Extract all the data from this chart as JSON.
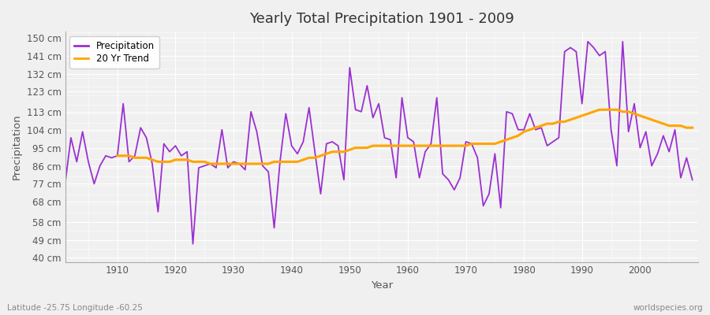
{
  "title": "Yearly Total Precipitation 1901 - 2009",
  "xlabel": "Year",
  "ylabel": "Precipitation",
  "subtitle": "Latitude -25.75 Longitude -60.25",
  "watermark": "worldspecies.org",
  "years": [
    1901,
    1902,
    1903,
    1904,
    1905,
    1906,
    1907,
    1908,
    1909,
    1910,
    1911,
    1912,
    1913,
    1914,
    1915,
    1916,
    1917,
    1918,
    1919,
    1920,
    1921,
    1922,
    1923,
    1924,
    1925,
    1926,
    1927,
    1928,
    1929,
    1930,
    1931,
    1932,
    1933,
    1934,
    1935,
    1936,
    1937,
    1938,
    1939,
    1940,
    1941,
    1942,
    1943,
    1944,
    1945,
    1946,
    1947,
    1948,
    1949,
    1950,
    1951,
    1952,
    1953,
    1954,
    1955,
    1956,
    1957,
    1958,
    1959,
    1960,
    1961,
    1962,
    1963,
    1964,
    1965,
    1966,
    1967,
    1968,
    1969,
    1970,
    1971,
    1972,
    1973,
    1974,
    1975,
    1976,
    1977,
    1978,
    1979,
    1980,
    1981,
    1982,
    1983,
    1984,
    1985,
    1986,
    1987,
    1988,
    1989,
    1990,
    1991,
    1992,
    1993,
    1994,
    1995,
    1996,
    1997,
    1998,
    1999,
    2000,
    2001,
    2002,
    2003,
    2004,
    2005,
    2006,
    2007,
    2008,
    2009
  ],
  "precip": [
    77,
    100,
    88,
    103,
    88,
    77,
    86,
    91,
    90,
    91,
    117,
    88,
    91,
    105,
    100,
    87,
    63,
    97,
    93,
    96,
    91,
    93,
    47,
    85,
    86,
    87,
    85,
    104,
    85,
    88,
    87,
    84,
    113,
    103,
    86,
    83,
    55,
    88,
    112,
    96,
    92,
    98,
    115,
    93,
    72,
    97,
    98,
    96,
    79,
    135,
    114,
    113,
    126,
    110,
    117,
    100,
    99,
    80,
    120,
    100,
    98,
    80,
    93,
    97,
    120,
    82,
    79,
    74,
    80,
    98,
    97,
    90,
    66,
    72,
    92,
    65,
    113,
    112,
    104,
    104,
    112,
    104,
    105,
    96,
    98,
    100,
    143,
    145,
    143,
    117,
    148,
    145,
    141,
    143,
    104,
    86,
    148,
    103,
    117,
    95,
    103,
    86,
    92,
    101,
    93,
    104,
    80,
    90,
    79
  ],
  "trend": [
    null,
    null,
    null,
    null,
    null,
    null,
    null,
    null,
    null,
    91,
    91,
    91,
    90,
    90,
    90,
    89,
    88,
    88,
    88,
    89,
    89,
    89,
    88,
    88,
    88,
    87,
    87,
    87,
    87,
    87,
    87,
    87,
    87,
    87,
    87,
    87,
    88,
    88,
    88,
    88,
    88,
    89,
    90,
    90,
    91,
    92,
    93,
    93,
    93,
    94,
    95,
    95,
    95,
    96,
    96,
    96,
    96,
    96,
    96,
    96,
    96,
    96,
    96,
    96,
    96,
    96,
    96,
    96,
    96,
    96,
    97,
    97,
    97,
    97,
    97,
    98,
    99,
    100,
    101,
    103,
    104,
    105,
    106,
    107,
    107,
    108,
    108,
    109,
    110,
    111,
    112,
    113,
    114,
    114,
    114,
    114,
    113,
    113,
    112,
    111,
    110,
    109,
    108,
    107,
    106,
    106,
    106,
    105,
    105
  ],
  "precip_color": "#9b30d0",
  "trend_color": "#ffa500",
  "plot_bg_color": "#f0f0f0",
  "fig_bg_color": "#f0f0f0",
  "grid_color": "#ffffff",
  "yticks": [
    40,
    49,
    58,
    68,
    77,
    86,
    95,
    104,
    113,
    123,
    132,
    141,
    150
  ],
  "ytick_labels": [
    "40 cm",
    "49 cm",
    "58 cm",
    "68 cm",
    "77 cm",
    "86 cm",
    "95 cm",
    "104 cm",
    "113 cm",
    "123 cm",
    "132 cm",
    "141 cm",
    "150 cm"
  ],
  "ylim": [
    38,
    153
  ],
  "xlim": [
    1901,
    2010
  ]
}
